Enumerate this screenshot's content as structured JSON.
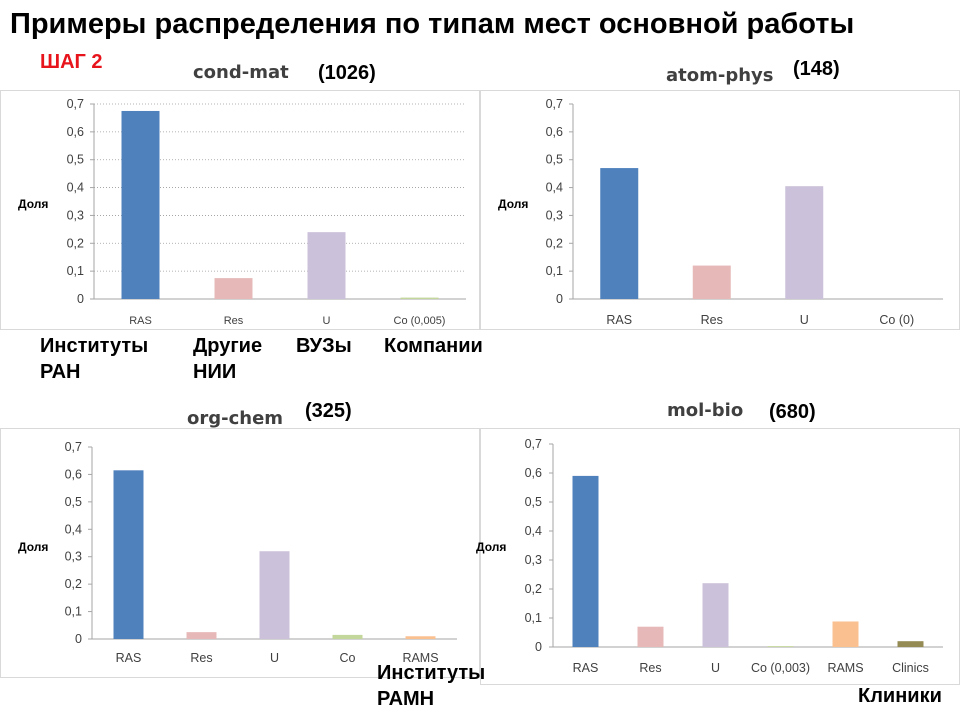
{
  "page": {
    "title": "Примеры распределения по типам мест основной работы",
    "step_label": "ШАГ 2"
  },
  "annotations": {
    "ras": "Институты\nРАН",
    "res": "Другие\nНИИ",
    "u": "ВУЗы",
    "co": "Компании",
    "rams": "Институты\nРАМН",
    "clinics": "Клиники"
  },
  "chart_data": [
    {
      "type": "bar",
      "title": "cond-mat",
      "count": "(1026)",
      "ylabel": "Доля",
      "ylim": [
        0,
        0.7
      ],
      "yticks": [
        "0",
        "0,1",
        "0,2",
        "0,3",
        "0,4",
        "0,5",
        "0,6",
        "0,7"
      ],
      "grid": true,
      "categories": [
        "RAS",
        "Res",
        "U",
        "Co (0,005)"
      ],
      "values": [
        0.675,
        0.075,
        0.24,
        0.005
      ],
      "colors": [
        "#4f81bd",
        "#e6b9b8",
        "#ccc1da",
        "#c3d69b"
      ]
    },
    {
      "type": "bar",
      "title": "atom-phys",
      "count": "(148)",
      "ylabel": "Доля",
      "ylim": [
        0,
        0.7
      ],
      "yticks": [
        "0",
        "0,1",
        "0,2",
        "0,3",
        "0,4",
        "0,5",
        "0,6",
        "0,7"
      ],
      "grid": false,
      "categories": [
        "RAS",
        "Res",
        "U",
        "Co (0)"
      ],
      "values": [
        0.47,
        0.12,
        0.405,
        0
      ],
      "colors": [
        "#4f81bd",
        "#e6b9b8",
        "#ccc1da",
        "#c3d69b"
      ]
    },
    {
      "type": "bar",
      "title": "org-chem",
      "count": "(325)",
      "ylabel": "Доля",
      "ylim": [
        0,
        0.7
      ],
      "yticks": [
        "0",
        "0,1",
        "0,2",
        "0,3",
        "0,4",
        "0,5",
        "0,6",
        "0,7"
      ],
      "grid": false,
      "categories": [
        "RAS",
        "Res",
        "U",
        "Co",
        "RAMS"
      ],
      "values": [
        0.615,
        0.025,
        0.32,
        0.015,
        0.01
      ],
      "colors": [
        "#4f81bd",
        "#e6b9b8",
        "#ccc1da",
        "#c3d69b",
        "#fac090"
      ]
    },
    {
      "type": "bar",
      "title": "mol-bio",
      "count": "(680)",
      "ylabel": "Доля",
      "ylim": [
        0,
        0.7
      ],
      "yticks": [
        "0",
        "0,1",
        "0,2",
        "0,3",
        "0,4",
        "0,5",
        "0,6",
        "0,7"
      ],
      "grid": false,
      "categories": [
        "RAS",
        "Res",
        "U",
        "Co (0,003)",
        "RAMS",
        "Clinics"
      ],
      "values": [
        0.59,
        0.07,
        0.22,
        0.003,
        0.088,
        0.02
      ],
      "colors": [
        "#4f81bd",
        "#e6b9b8",
        "#ccc1da",
        "#c3d69b",
        "#fac090",
        "#948a54"
      ]
    }
  ]
}
